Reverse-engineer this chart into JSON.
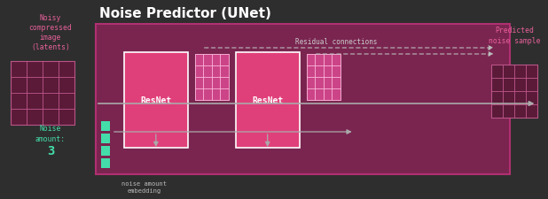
{
  "bg_color": "#2e2e2e",
  "box_bg": "#7a2550",
  "box_border": "#b03070",
  "resnet_fill": "#e0407a",
  "resnet_border": "#ffffff",
  "arrow_color": "#aaaaaa",
  "dashed_color": "#bbbbbb",
  "embed_color": "#44ddaa",
  "title": "Noise Predictor (UNet)",
  "title_color": "#ffffff",
  "title_fontsize": 11,
  "left_label_lines": [
    "Noisy",
    "compressed",
    "image",
    "(latents)"
  ],
  "left_label_color": "#e8609a",
  "right_label_lines": [
    "Predicted",
    "noise sample"
  ],
  "right_label_color": "#e8609a",
  "noise_label_color": "#44ddaa",
  "resnet_label": "ResNet",
  "residual_label": "Residual connections",
  "noise_embed_label": "noise amount\nembedding",
  "small_grid_fill": "#cc4488",
  "small_grid_line": "#ffbbdd",
  "left_grid_fill": "#5a1a38",
  "left_grid_line": "#bb5588",
  "right_grid_fill": "#5a1a38",
  "right_grid_line": "#bb5588"
}
